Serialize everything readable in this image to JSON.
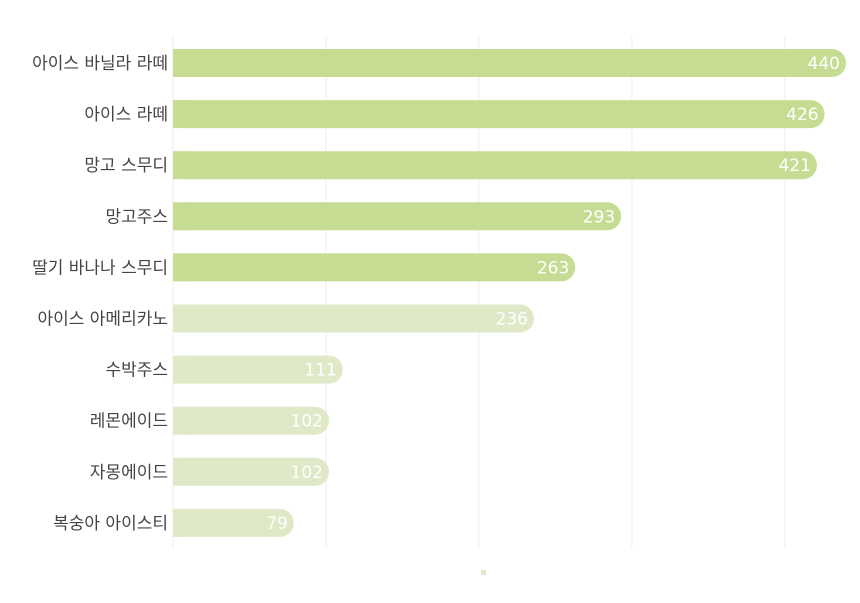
{
  "chart_data": {
    "type": "bar",
    "orientation": "horizontal",
    "categories": [
      "아이스 바닐라 라떼",
      "아이스 라떼",
      "망고 스무디",
      "망고주스",
      "딸기 바나나 스무디",
      "아이스 아메리카노",
      "수박주스",
      "레몬에이드",
      "자몽에이드",
      "복숭아 아이스티"
    ],
    "values": [
      440,
      426,
      421,
      293,
      263,
      236,
      111,
      102,
      102,
      79
    ],
    "xlim": [
      0,
      440
    ],
    "grid": true,
    "gridlines_x": [
      0,
      100,
      200,
      300,
      400
    ],
    "highlight_count": 5,
    "colors": {
      "highlight": "#c5dc92",
      "normal": "#dfe8c7",
      "label": "#444444",
      "value_label": "#ffffff",
      "grid": "#eeeeee"
    }
  }
}
